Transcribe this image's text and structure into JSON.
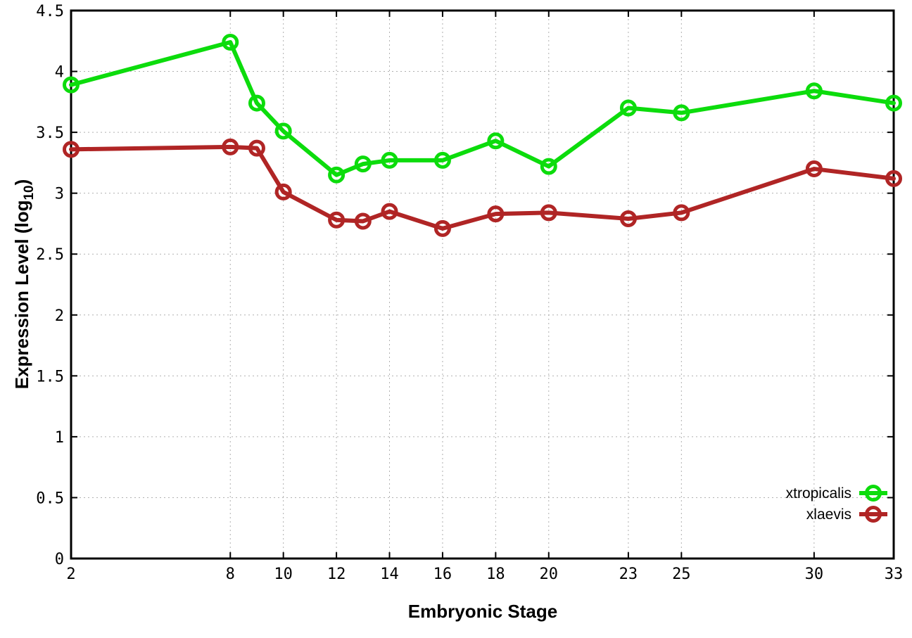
{
  "chart_data": {
    "type": "line",
    "title": "",
    "xlabel": "Embryonic Stage",
    "ylabel": "Expression Level (log10)",
    "ylabel_parts": {
      "main": "Expression Level (log",
      "sub": "10",
      "close": ")"
    },
    "x": [
      2,
      8,
      9,
      10,
      12,
      13,
      14,
      16,
      18,
      20,
      23,
      25,
      30,
      33
    ],
    "xlim": [
      2,
      33
    ],
    "ylim": [
      0,
      4.5
    ],
    "xticks": [
      2,
      8,
      10,
      12,
      14,
      16,
      18,
      20,
      23,
      25,
      30,
      33
    ],
    "yticks": [
      0,
      0.5,
      1,
      1.5,
      2,
      2.5,
      3,
      3.5,
      4,
      4.5
    ],
    "grid": true,
    "legend_position": "bottom-right",
    "series": [
      {
        "name": "xtropicalis",
        "color": "#0cdc0c",
        "marker": "open-circle",
        "values": [
          3.89,
          4.24,
          3.74,
          3.51,
          3.15,
          3.24,
          3.27,
          3.27,
          3.43,
          3.22,
          3.7,
          3.66,
          3.84,
          3.74
        ]
      },
      {
        "name": "xlaevis",
        "color": "#b02525",
        "marker": "open-circle",
        "values": [
          3.36,
          3.38,
          3.37,
          3.01,
          2.78,
          2.77,
          2.85,
          2.71,
          2.83,
          2.84,
          2.79,
          2.84,
          3.2,
          3.12
        ]
      }
    ],
    "colors": {
      "background": "#ffffff",
      "axis": "#000000",
      "grid": "#b0b0b0",
      "text": "#000000"
    }
  }
}
